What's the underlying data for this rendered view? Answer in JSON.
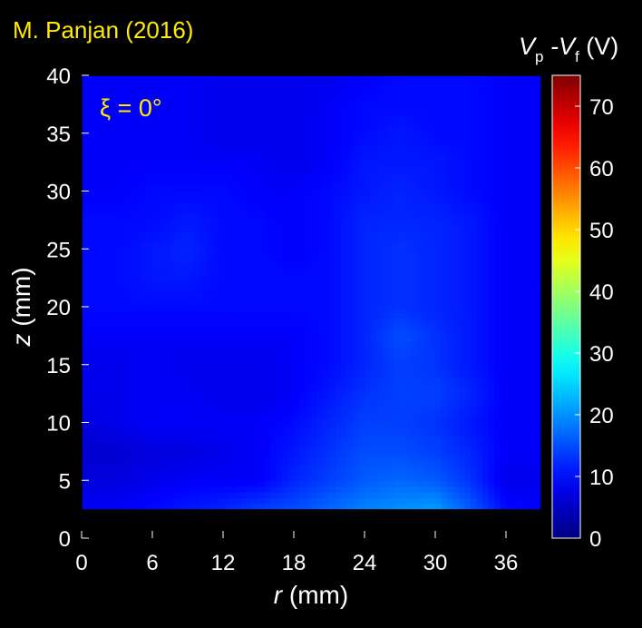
{
  "author_label": "M. Panjan (2016)",
  "annotation": "ξ = 0°",
  "colors": {
    "background": "#000000",
    "author_text": "#ffea00",
    "annotation_text": "#ffea00",
    "axis_text": "#ffffff",
    "substrate": "#000000"
  },
  "chart_data": {
    "type": "heatmap",
    "title": "",
    "xlabel_var": "r",
    "xlabel_unit": "(mm)",
    "ylabel_var": "z",
    "ylabel_unit": "(mm)",
    "xlim": [
      0,
      39
    ],
    "ylim": [
      0,
      40
    ],
    "xticks": [
      0,
      6,
      12,
      18,
      24,
      30,
      36
    ],
    "yticks": [
      0,
      5,
      10,
      15,
      20,
      25,
      30,
      35,
      40
    ],
    "substrate_height": 2.5,
    "colorbar": {
      "label_parts": [
        "V",
        "p",
        "-V",
        "f",
        "(V)"
      ],
      "range": [
        0,
        75
      ],
      "ticks": [
        0,
        10,
        20,
        30,
        40,
        50,
        60,
        70
      ],
      "colormap": "jet"
    },
    "x": [
      0,
      3,
      6,
      9,
      12,
      15,
      18,
      21,
      24,
      27,
      30,
      33,
      36,
      39
    ],
    "y": [
      2.5,
      5,
      7.5,
      10,
      12.5,
      15,
      17.5,
      20,
      22.5,
      25,
      27.5,
      30,
      32.5,
      35,
      37.5,
      40
    ],
    "z": [
      [
        9,
        9,
        10,
        11,
        12,
        14,
        15,
        17,
        19,
        20,
        21,
        16,
        10,
        9
      ],
      [
        7,
        7,
        8,
        9,
        9,
        9,
        12,
        14,
        16,
        17,
        16,
        13,
        8,
        8
      ],
      [
        6,
        6,
        7,
        7,
        8,
        9,
        11,
        13,
        15,
        15,
        14,
        12,
        9,
        9
      ],
      [
        7,
        8,
        9,
        9,
        9,
        9,
        10,
        12,
        14,
        14,
        13,
        11,
        9,
        9
      ],
      [
        8,
        8,
        9,
        9,
        8,
        8,
        9,
        11,
        13,
        14,
        14,
        12,
        9,
        9
      ],
      [
        8,
        8,
        9,
        8,
        8,
        8,
        9,
        10,
        12,
        14,
        13,
        11,
        9,
        9
      ],
      [
        9,
        9,
        9,
        9,
        9,
        9,
        9,
        10,
        12,
        15,
        13,
        11,
        9,
        9
      ],
      [
        10,
        10,
        10,
        10,
        10,
        10,
        10,
        10,
        12,
        13,
        12,
        11,
        9,
        9
      ],
      [
        10,
        10,
        11,
        11,
        10,
        10,
        10,
        10,
        12,
        13,
        12,
        11,
        9,
        9
      ],
      [
        10,
        10,
        11,
        12,
        10,
        10,
        9,
        10,
        12,
        13,
        12,
        11,
        9,
        9
      ],
      [
        10,
        10,
        10,
        11,
        10,
        10,
        9,
        10,
        12,
        12,
        12,
        11,
        9,
        9
      ],
      [
        9,
        9,
        10,
        10,
        10,
        9,
        9,
        10,
        11,
        12,
        11,
        10,
        9,
        9
      ],
      [
        9,
        9,
        9,
        9,
        9,
        9,
        8,
        9,
        11,
        11,
        11,
        10,
        9,
        9
      ],
      [
        9,
        9,
        9,
        9,
        8,
        8,
        8,
        9,
        10,
        11,
        10,
        10,
        9,
        9
      ],
      [
        9,
        9,
        9,
        9,
        8,
        8,
        8,
        9,
        10,
        10,
        10,
        10,
        9,
        9
      ],
      [
        9,
        9,
        9,
        9,
        8,
        8,
        8,
        8,
        9,
        10,
        10,
        10,
        9,
        9
      ]
    ]
  }
}
